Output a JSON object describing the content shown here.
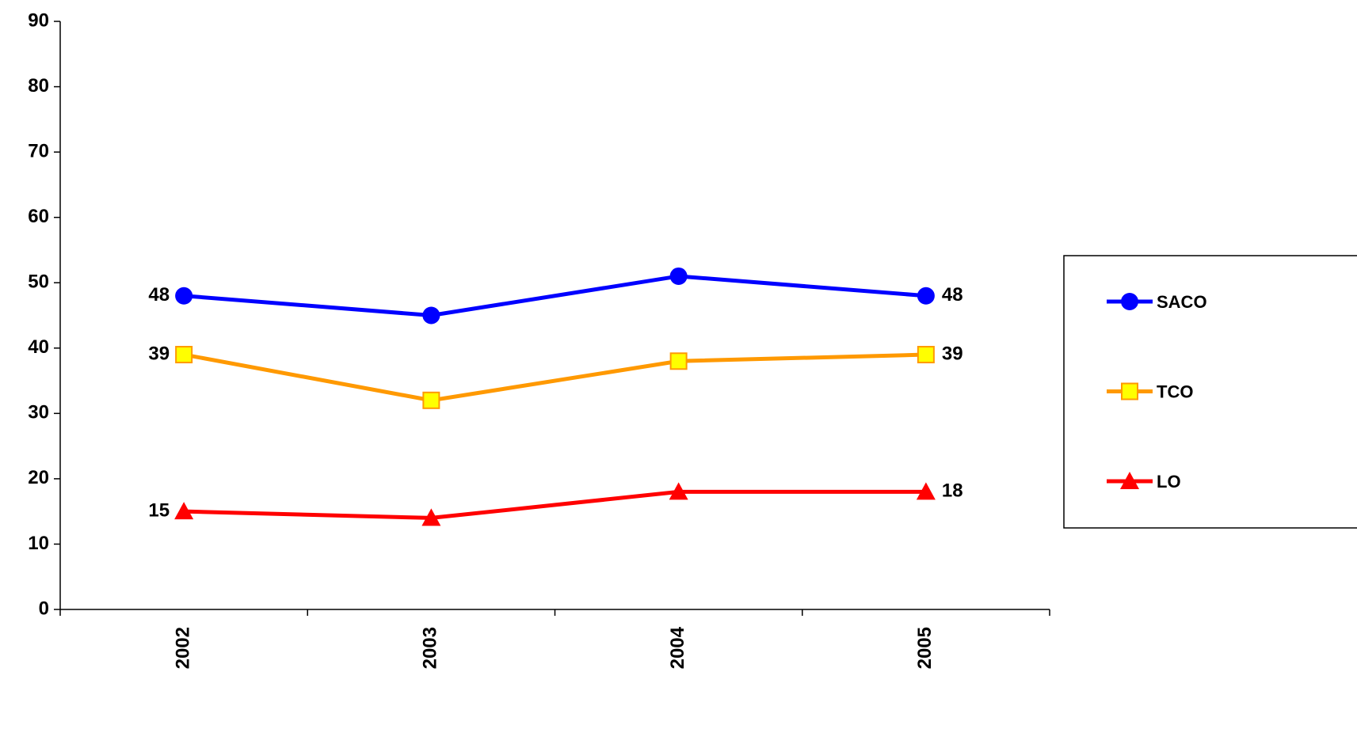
{
  "chart_data": {
    "type": "line",
    "categories": [
      "2002",
      "2003",
      "2004",
      "2005"
    ],
    "series": [
      {
        "name": "SACO",
        "color": "#0000ff",
        "marker": "circle",
        "values": [
          48,
          45,
          51,
          48
        ],
        "value_labels": [
          "48",
          null,
          null,
          "48"
        ]
      },
      {
        "name": "TCO",
        "color": "#ff9900",
        "marker": "square",
        "marker_fill": "#ffff00",
        "values": [
          39,
          32,
          38,
          39
        ],
        "value_labels": [
          "39",
          null,
          null,
          "39"
        ]
      },
      {
        "name": "LO",
        "color": "#ff0000",
        "marker": "triangle",
        "values": [
          15,
          14,
          18,
          18
        ],
        "value_labels": [
          "15",
          null,
          null,
          "18"
        ]
      }
    ],
    "ylim": [
      0,
      90
    ],
    "yticks": [
      0,
      10,
      20,
      30,
      40,
      50,
      60,
      70,
      80,
      90
    ],
    "grid": false,
    "legend": "right"
  }
}
